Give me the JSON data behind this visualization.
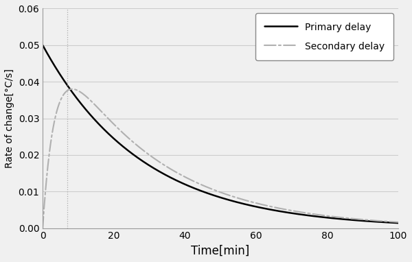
{
  "title": "",
  "xlabel": "Time[min]",
  "ylabel": "Rate of change[°C/s]",
  "xlim": [
    0,
    100
  ],
  "ylim": [
    0,
    0.06
  ],
  "xticks": [
    0,
    20,
    40,
    60,
    80,
    100
  ],
  "yticks": [
    0,
    0.01,
    0.02,
    0.03,
    0.04,
    0.05,
    0.06
  ],
  "primary_color": "#000000",
  "secondary_color": "#b0b0b0",
  "primary_label": "Primary delay",
  "secondary_label": "Secondary delay",
  "primary_A": 0.05,
  "primary_tau": 28.0,
  "secondary_peak_t": 8.0,
  "secondary_peak_val": 0.038,
  "secondary_tau_decay": 28.0,
  "vline_x": 7.0,
  "vline_color": "#aaaaaa",
  "figsize": [
    6.0,
    3.82
  ],
  "dpi": 100,
  "bg_color": "#f5f5f5",
  "plot_bg": "#f5f5f5"
}
